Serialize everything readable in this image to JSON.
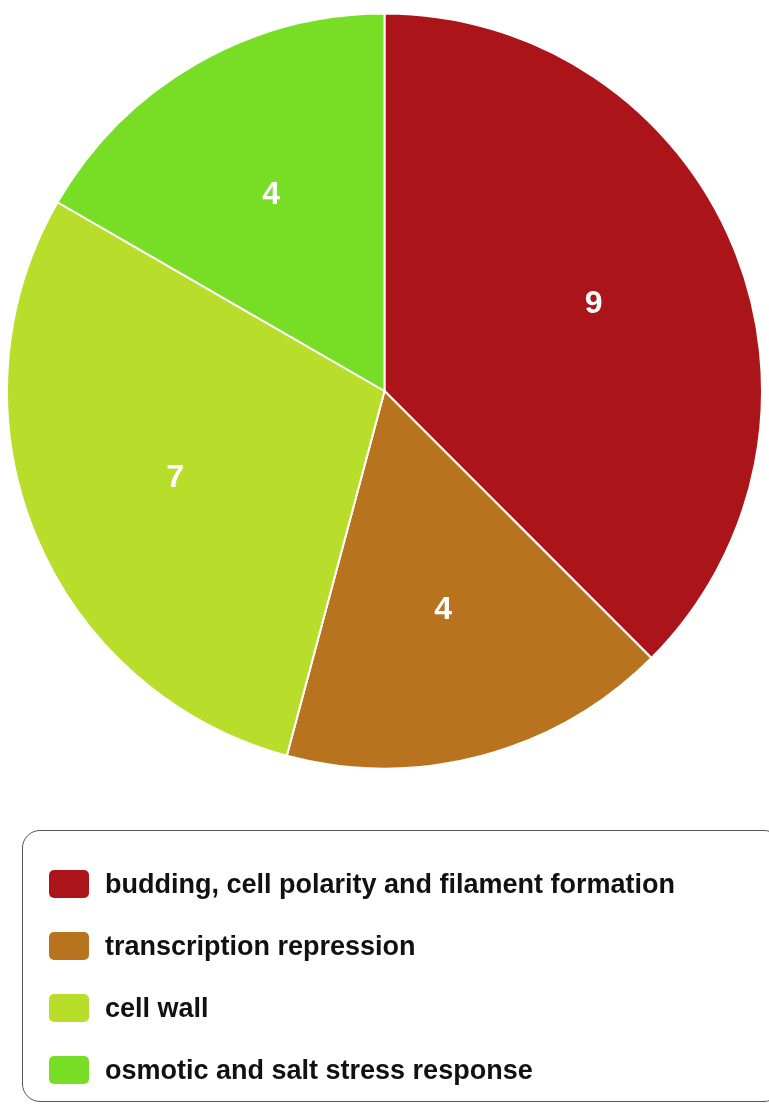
{
  "chart_data": {
    "type": "pie",
    "categories": [
      "budding, cell polarity and filament formation",
      "transcription repression",
      "cell wall",
      "osmotic and salt stress response"
    ],
    "values": [
      9,
      4,
      7,
      4
    ],
    "colors": [
      "#ab1519",
      "#b8731f",
      "#b8dd2a",
      "#77dd25"
    ],
    "data_labels": true,
    "legend": "bottom"
  }
}
